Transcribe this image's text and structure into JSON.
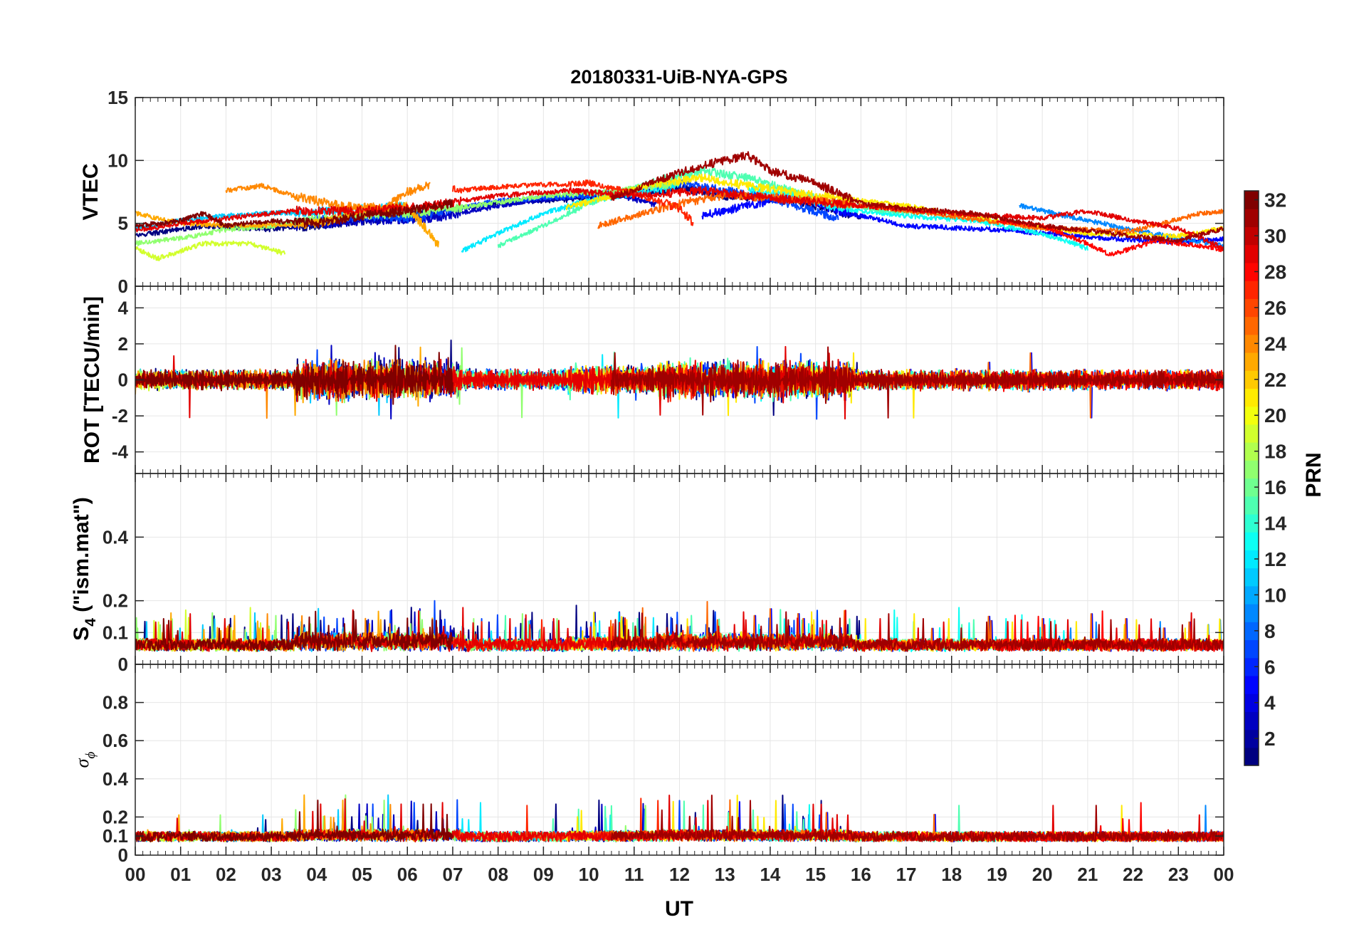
{
  "chart_data": {
    "type": "line",
    "title": "20180331-UiB-NYA-GPS",
    "xlabel": "UT",
    "x_ticks": [
      "00",
      "01",
      "02",
      "03",
      "04",
      "05",
      "06",
      "07",
      "08",
      "09",
      "10",
      "11",
      "12",
      "13",
      "14",
      "15",
      "16",
      "17",
      "18",
      "19",
      "20",
      "21",
      "22",
      "23",
      "00"
    ],
    "xlim": [
      0,
      24
    ],
    "grid": true,
    "panels": [
      {
        "name": "vtec",
        "ylabel": "VTEC",
        "ylim": [
          0,
          15
        ],
        "y_ticks": [
          0,
          5,
          10,
          15
        ],
        "y_tick_labels": [
          "0",
          "5",
          "10",
          "15"
        ]
      },
      {
        "name": "rot",
        "ylabel": "ROT [TECU/min]",
        "ylim": [
          -5.2,
          5.2
        ],
        "y_ticks": [
          -4,
          -2,
          0,
          2,
          4
        ],
        "y_tick_labels": [
          "-4",
          "-2",
          "0",
          "2",
          "4"
        ]
      },
      {
        "name": "s4",
        "ylabel_main": "S",
        "ylabel_sub": "4",
        "ylabel_rest": " (\"ism.mat\")",
        "ylim": [
          0,
          0.6
        ],
        "y_ticks": [
          0,
          0.1,
          0.2,
          0.4
        ],
        "y_tick_labels": [
          "0",
          "0.1",
          "0.2",
          "0.4"
        ]
      },
      {
        "name": "sigma_phi",
        "ylabel_main": "σ",
        "ylabel_sub": "ϕ",
        "ylim": [
          0,
          1
        ],
        "y_ticks": [
          0,
          0.1,
          0.2,
          0.4,
          0.6,
          0.8
        ],
        "y_tick_labels": [
          "0",
          "0.1",
          "0.2",
          "0.4",
          "0.6",
          "0.8"
        ]
      }
    ],
    "colorbar": {
      "label": "PRN",
      "range": [
        1,
        32
      ],
      "ticks": [
        2,
        4,
        6,
        8,
        10,
        12,
        14,
        16,
        18,
        20,
        22,
        24,
        26,
        28,
        30,
        32
      ],
      "tick_labels": [
        "2",
        "4",
        "6",
        "8",
        "10",
        "12",
        "14",
        "16",
        "18",
        "20",
        "22",
        "24",
        "26",
        "28",
        "30",
        "32"
      ],
      "colormap": "jet"
    },
    "series": [
      {
        "name": "PRN 1",
        "prn": 1,
        "vtec": [
          [
            0,
            4.0
          ],
          [
            1.5,
            4.8
          ],
          [
            3,
            4.5
          ],
          [
            5,
            5.2
          ],
          [
            6,
            5.6
          ],
          [
            8,
            6.6
          ],
          [
            10,
            7.0
          ],
          [
            12,
            7.8
          ],
          [
            13,
            7.2
          ],
          [
            14.5,
            6.8
          ],
          [
            16,
            5.5
          ]
        ]
      },
      {
        "name": "PRN 3",
        "prn": 3,
        "vtec": [
          [
            3.5,
            4.8
          ],
          [
            5,
            5.2
          ],
          [
            6.5,
            5.4
          ],
          [
            8.5,
            6.7
          ],
          [
            10.5,
            7.4
          ],
          [
            11.5,
            6.5
          ]
        ]
      },
      {
        "name": "PRN 5",
        "prn": 5,
        "vtec": [
          [
            12.5,
            5.6
          ],
          [
            13.5,
            6.4
          ],
          [
            14.5,
            7.2
          ],
          [
            15.5,
            6.0
          ],
          [
            17,
            4.8
          ],
          [
            19,
            4.5
          ],
          [
            21.5,
            3.8
          ],
          [
            23,
            3.5
          ],
          [
            24,
            3.8
          ]
        ]
      },
      {
        "name": "PRN 7",
        "prn": 7,
        "vtec": [
          [
            3.5,
            5.0
          ],
          [
            5,
            5.6
          ],
          [
            6,
            5.4
          ],
          [
            8,
            6.8
          ],
          [
            10,
            7.2
          ],
          [
            12,
            8.2
          ],
          [
            14,
            7.0
          ],
          [
            15.5,
            5.4
          ]
        ]
      },
      {
        "name": "PRN 9",
        "prn": 9,
        "vtec": [
          [
            19.5,
            6.4
          ],
          [
            20.5,
            5.6
          ],
          [
            22,
            4.5
          ],
          [
            23,
            3.8
          ],
          [
            24,
            3.2
          ]
        ]
      },
      {
        "name": "PRN 11",
        "prn": 11,
        "vtec": [
          [
            0,
            4.6
          ],
          [
            1,
            5.2
          ],
          [
            2,
            5.6
          ],
          [
            3,
            5.8
          ],
          [
            4.5,
            6.0
          ],
          [
            6,
            6.4
          ]
        ]
      },
      {
        "name": "PRN 12",
        "prn": 12,
        "vtec": [
          [
            7.2,
            2.8
          ],
          [
            8,
            4.2
          ],
          [
            9,
            5.8
          ],
          [
            10,
            6.8
          ],
          [
            11,
            7.4
          ],
          [
            12,
            8.0
          ]
        ]
      },
      {
        "name": "PRN 13",
        "prn": 13,
        "vtec": [
          [
            13.5,
            7.8
          ],
          [
            14.5,
            7.2
          ],
          [
            15.5,
            6.2
          ],
          [
            17,
            5.6
          ],
          [
            18.5,
            5.2
          ],
          [
            20,
            4.2
          ],
          [
            21,
            3.0
          ]
        ]
      },
      {
        "name": "PRN 15",
        "prn": 15,
        "vtec": [
          [
            8,
            3.2
          ],
          [
            9,
            4.8
          ],
          [
            10,
            6.6
          ],
          [
            11.5,
            8.4
          ],
          [
            12.5,
            9.2
          ],
          [
            13.5,
            8.6
          ],
          [
            15,
            7.0
          ],
          [
            16.5,
            6.0
          ],
          [
            18,
            5.8
          ],
          [
            19.5,
            5.0
          ]
        ]
      },
      {
        "name": "PRN 17",
        "prn": 17,
        "vtec": [
          [
            0,
            3.4
          ],
          [
            1,
            3.8
          ],
          [
            2,
            4.5
          ],
          [
            3,
            4.8
          ],
          [
            4.5,
            5.6
          ],
          [
            6,
            5.8
          ],
          [
            7.5,
            6.4
          ],
          [
            9,
            7.2
          ],
          [
            10.5,
            7.5
          ],
          [
            12,
            8.2
          ]
        ]
      },
      {
        "name": "PRN 19",
        "prn": 19,
        "vtec": [
          [
            0,
            3.0
          ],
          [
            0.5,
            2.2
          ],
          [
            1.5,
            3.4
          ],
          [
            2.5,
            3.4
          ],
          [
            3.3,
            2.6
          ]
        ]
      },
      {
        "name": "PRN 21",
        "prn": 21,
        "vtec": [
          [
            9.5,
            6.2
          ],
          [
            10.5,
            7.2
          ],
          [
            11.5,
            8.2
          ],
          [
            12.5,
            8.6
          ],
          [
            13.5,
            8.0
          ],
          [
            15,
            7.2
          ],
          [
            17,
            6.4
          ],
          [
            19,
            5.2
          ],
          [
            21,
            4.2
          ],
          [
            23,
            4.0
          ],
          [
            24,
            4.6
          ]
        ]
      },
      {
        "name": "PRN 23",
        "prn": 23,
        "vtec": [
          [
            0,
            5.8
          ],
          [
            1,
            5.0
          ],
          [
            2.5,
            4.8
          ],
          [
            4,
            5.0
          ],
          [
            5,
            5.8
          ],
          [
            6,
            6.4
          ],
          [
            6.7,
            3.2
          ]
        ]
      },
      {
        "name": "PRN 24",
        "prn": 24,
        "vtec": [
          [
            2,
            7.6
          ],
          [
            2.8,
            8.0
          ],
          [
            3.5,
            7.2
          ],
          [
            4.5,
            6.4
          ],
          [
            5.5,
            6.2
          ],
          [
            6,
            7.5
          ],
          [
            6.5,
            8.0
          ]
        ]
      },
      {
        "name": "PRN 25",
        "prn": 25,
        "vtec": [
          [
            10.2,
            4.8
          ],
          [
            11,
            5.6
          ],
          [
            12,
            6.6
          ],
          [
            13,
            7.2
          ],
          [
            14.5,
            7.0
          ],
          [
            16,
            6.4
          ],
          [
            18,
            5.6
          ],
          [
            20,
            4.6
          ],
          [
            22,
            4.4
          ],
          [
            23.5,
            5.8
          ],
          [
            24,
            6.0
          ]
        ]
      },
      {
        "name": "PRN 27",
        "prn": 27,
        "vtec": [
          [
            7,
            7.6
          ],
          [
            8.5,
            8.0
          ],
          [
            10,
            8.2
          ],
          [
            11,
            7.4
          ],
          [
            12,
            6.2
          ],
          [
            12.3,
            5.0
          ]
        ]
      },
      {
        "name": "PRN 28",
        "prn": 28,
        "vtec": [
          [
            19,
            5.2
          ],
          [
            20,
            4.8
          ],
          [
            21,
            3.4
          ],
          [
            21.5,
            2.5
          ],
          [
            22.5,
            3.6
          ],
          [
            23.5,
            3.2
          ],
          [
            24,
            2.9
          ]
        ]
      },
      {
        "name": "PRN 29",
        "prn": 29,
        "vtec": [
          [
            0,
            4.4
          ],
          [
            1,
            5.0
          ],
          [
            2,
            5.4
          ],
          [
            3.5,
            6.0
          ],
          [
            5,
            6.0
          ],
          [
            6.5,
            6.4
          ],
          [
            8,
            7.2
          ],
          [
            9.5,
            7.6
          ],
          [
            11,
            7.2
          ],
          [
            12.5,
            7.6
          ],
          [
            14,
            7.0
          ],
          [
            16,
            6.4
          ],
          [
            18,
            5.8
          ],
          [
            20,
            5.4
          ],
          [
            21,
            6.0
          ],
          [
            22,
            5.2
          ],
          [
            23,
            4.6
          ],
          [
            24,
            3.0
          ]
        ]
      },
      {
        "name": "PRN 31",
        "prn": 31,
        "vtec": [
          [
            10.5,
            7.0
          ],
          [
            11.5,
            8.4
          ],
          [
            12.5,
            9.6
          ],
          [
            13,
            10.0
          ],
          [
            13.5,
            10.4
          ],
          [
            14,
            9.2
          ],
          [
            15,
            8.2
          ],
          [
            16,
            6.6
          ],
          [
            17,
            6.2
          ],
          [
            18.5,
            5.8
          ],
          [
            20,
            4.8
          ],
          [
            21.5,
            4.2
          ],
          [
            23,
            3.6
          ],
          [
            24,
            4.6
          ]
        ]
      },
      {
        "name": "PRN 32",
        "prn": 32,
        "vtec": [
          [
            0,
            4.8
          ],
          [
            1,
            5.2
          ],
          [
            1.5,
            5.8
          ],
          [
            2,
            4.8
          ],
          [
            3,
            5.2
          ],
          [
            4,
            5.0
          ],
          [
            5,
            5.6
          ],
          [
            6,
            6.0
          ],
          [
            7,
            6.6
          ]
        ]
      }
    ]
  }
}
